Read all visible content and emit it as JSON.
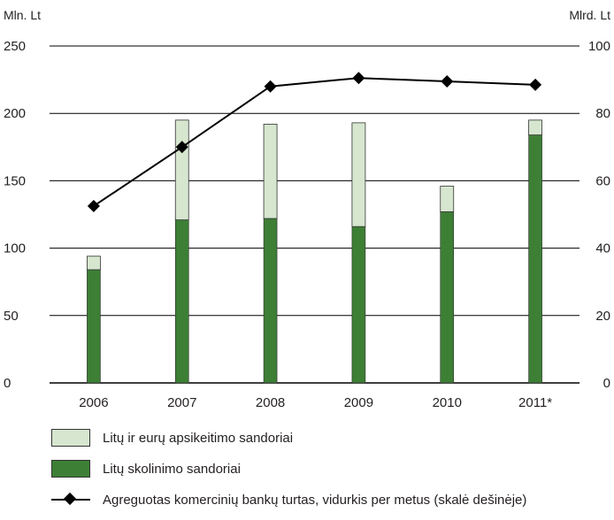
{
  "chart_data": {
    "type": "bar",
    "title": "",
    "left_axis_unit": "Mln. Lt",
    "right_axis_unit": "Mlrd. Lt",
    "categories": [
      "2006",
      "2007",
      "2008",
      "2009",
      "2010",
      "2011*"
    ],
    "ylim": [
      0,
      250
    ],
    "yticks": [
      0,
      50,
      100,
      150,
      200,
      250
    ],
    "y2lim": [
      0,
      100
    ],
    "y2ticks": [
      0,
      20,
      40,
      60,
      80,
      100
    ],
    "grid": true,
    "legend_position": "bottom",
    "series": [
      {
        "name": "Litų skolinimo sandoriai",
        "kind": "bar-stacked",
        "axis": "left",
        "color": "#3d7f35",
        "values": [
          84,
          121,
          122,
          116,
          127,
          184
        ]
      },
      {
        "name": "Litų ir eurų apsikeitimo sandoriai",
        "kind": "bar-stacked",
        "axis": "left",
        "color": "#d6e6cf",
        "values": [
          10,
          74,
          70,
          77,
          19,
          11
        ]
      },
      {
        "name": "Agreguotas komercinių bankų turtas, vidurkis per metus (skalė dešinėje)",
        "kind": "line-diamond",
        "axis": "right",
        "color": "#000000",
        "values": [
          52.5,
          70,
          88,
          90.5,
          89.5,
          88.5
        ]
      }
    ]
  }
}
